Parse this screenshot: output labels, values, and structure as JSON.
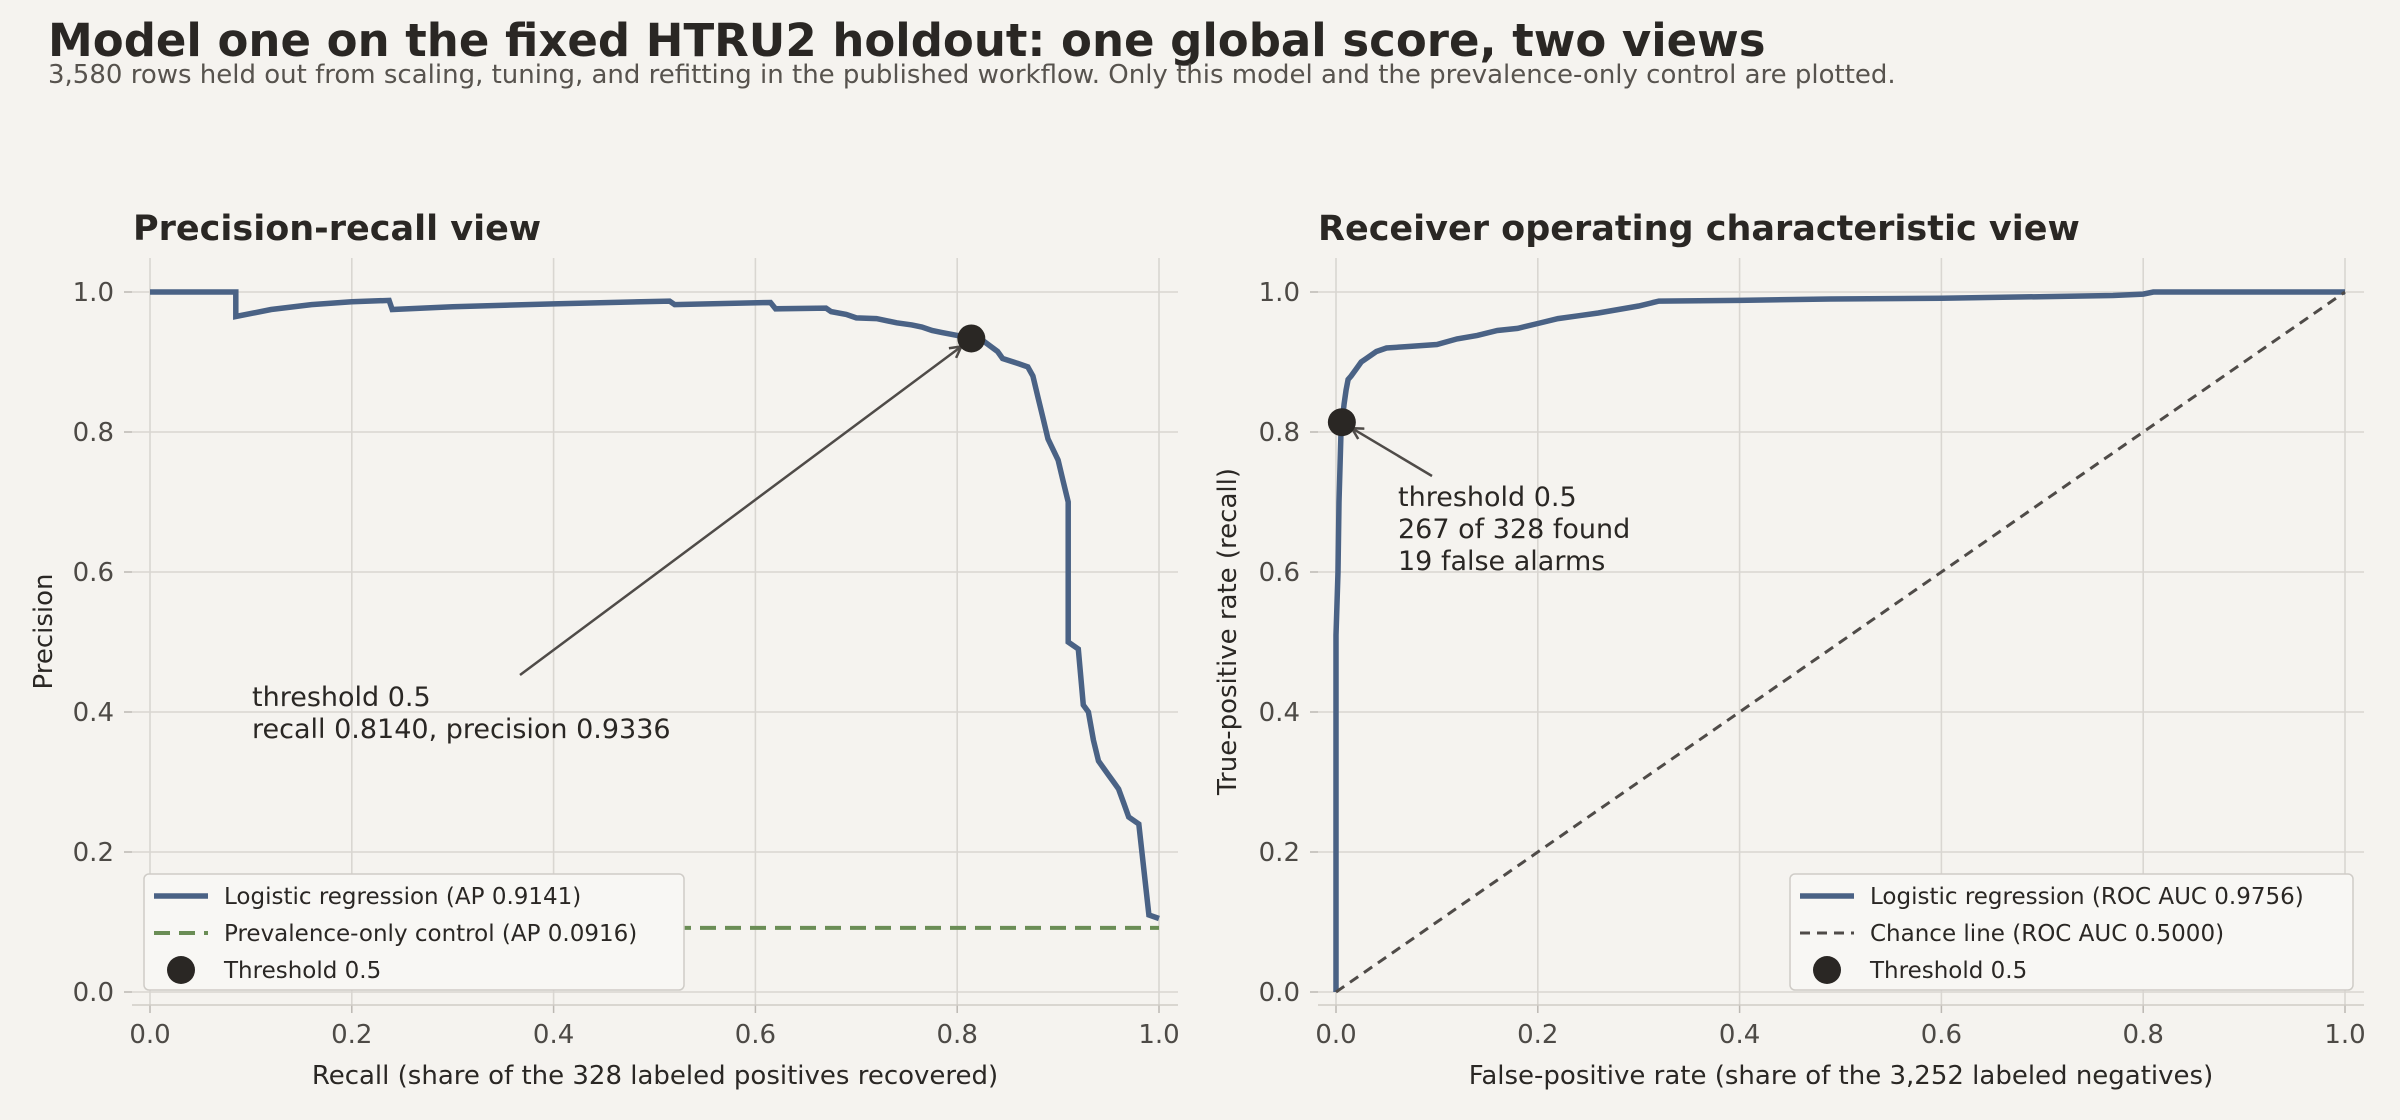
{
  "header": {
    "title": "Model one on the fixed HTRU2 holdout: one global score, two views",
    "subtitle": "3,580 rows held out from scaling, tuning, and refitting in the published workflow. Only this model and the prevalence-only control are plotted."
  },
  "colors": {
    "background": "#f5f3ef",
    "model": "#4a6285",
    "control": "#6a8d55",
    "chance": "#4f4b48",
    "marker": "#2a2724",
    "grid": "#d9d6d1"
  },
  "chart_data": [
    {
      "type": "line",
      "title": "Precision-recall view",
      "xlabel": "Recall (share of the 328 labeled positives recovered)",
      "ylabel": "Precision",
      "xlim": [
        0.0,
        1.0
      ],
      "ylim": [
        0.0,
        1.0
      ],
      "xticks": [
        "0.0",
        "0.2",
        "0.4",
        "0.6",
        "0.8",
        "1.0"
      ],
      "yticks": [
        "0.0",
        "0.2",
        "0.4",
        "0.6",
        "0.8",
        "1.0"
      ],
      "grid": true,
      "legend_position": "lower-left",
      "series": [
        {
          "name": "Logistic regression (AP 0.9141)",
          "step": true,
          "x": [
            0.0,
            0.085,
            0.085,
            0.12,
            0.16,
            0.2,
            0.237,
            0.24,
            0.3,
            0.4,
            0.515,
            0.52,
            0.615,
            0.62,
            0.67,
            0.675,
            0.69,
            0.7,
            0.72,
            0.74,
            0.755,
            0.765,
            0.775,
            0.785,
            0.8,
            0.814,
            0.826,
            0.84,
            0.845,
            0.86,
            0.87,
            0.875,
            0.88,
            0.885,
            0.89,
            0.9,
            0.905,
            0.91,
            0.91,
            0.92,
            0.925,
            0.93,
            0.935,
            0.94,
            0.945,
            0.95,
            0.955,
            0.96,
            0.965,
            0.97,
            0.98,
            0.99,
            1.0
          ],
          "y": [
            1.0,
            1.0,
            0.965,
            0.975,
            0.982,
            0.986,
            0.988,
            0.975,
            0.979,
            0.983,
            0.987,
            0.982,
            0.985,
            0.976,
            0.977,
            0.972,
            0.968,
            0.963,
            0.962,
            0.956,
            0.953,
            0.95,
            0.945,
            0.942,
            0.938,
            0.9336,
            0.93,
            0.915,
            0.905,
            0.898,
            0.893,
            0.88,
            0.85,
            0.82,
            0.79,
            0.76,
            0.73,
            0.7,
            0.5,
            0.49,
            0.41,
            0.4,
            0.36,
            0.33,
            0.32,
            0.31,
            0.3,
            0.29,
            0.27,
            0.25,
            0.24,
            0.11,
            0.105
          ]
        },
        {
          "name": "Prevalence-only control (AP 0.0916)",
          "style": "dashed",
          "x": [
            0.0,
            1.0
          ],
          "y": [
            0.0916,
            0.0916
          ]
        }
      ],
      "threshold_point": {
        "name": "Threshold 0.5",
        "x": 0.814,
        "y": 0.9336
      },
      "annotation": {
        "line1": "threshold 0.5",
        "line2": "recall 0.8140, precision 0.9336"
      }
    },
    {
      "type": "line",
      "title": "Receiver operating characteristic view",
      "xlabel": "False-positive rate (share of the 3,252 labeled negatives)",
      "ylabel": "True-positive rate (recall)",
      "xlim": [
        0.0,
        1.0
      ],
      "ylim": [
        0.0,
        1.0
      ],
      "xticks": [
        "0.0",
        "0.2",
        "0.4",
        "0.6",
        "0.8",
        "1.0"
      ],
      "yticks": [
        "0.0",
        "0.2",
        "0.4",
        "0.6",
        "0.8",
        "1.0"
      ],
      "grid": true,
      "legend_position": "lower-right",
      "series": [
        {
          "name": "Logistic regression (ROC AUC 0.9756)",
          "step": true,
          "x": [
            0.0,
            0.0,
            0.002,
            0.003,
            0.004,
            0.005,
            0.006,
            0.008,
            0.01,
            0.012,
            0.015,
            0.02,
            0.025,
            0.03,
            0.04,
            0.05,
            0.07,
            0.1,
            0.12,
            0.14,
            0.16,
            0.18,
            0.2,
            0.22,
            0.24,
            0.26,
            0.28,
            0.3,
            0.32,
            0.4,
            0.49,
            0.6,
            0.77,
            0.8,
            0.81,
            1.0
          ],
          "y": [
            0.0,
            0.51,
            0.6,
            0.7,
            0.75,
            0.8,
            0.814,
            0.84,
            0.86,
            0.875,
            0.88,
            0.89,
            0.9,
            0.905,
            0.915,
            0.92,
            0.922,
            0.925,
            0.933,
            0.938,
            0.945,
            0.948,
            0.955,
            0.962,
            0.966,
            0.97,
            0.975,
            0.98,
            0.987,
            0.988,
            0.99,
            0.991,
            0.995,
            0.997,
            1.0,
            1.0
          ]
        },
        {
          "name": "Chance line (ROC AUC 0.5000)",
          "style": "dashed",
          "x": [
            0.0,
            1.0
          ],
          "y": [
            0.0,
            1.0
          ]
        }
      ],
      "threshold_point": {
        "name": "Threshold 0.5",
        "x": 0.0058,
        "y": 0.814
      },
      "annotation": {
        "line1": "threshold 0.5",
        "line2": "267 of 328 found",
        "line3": "19 false alarms"
      }
    }
  ]
}
